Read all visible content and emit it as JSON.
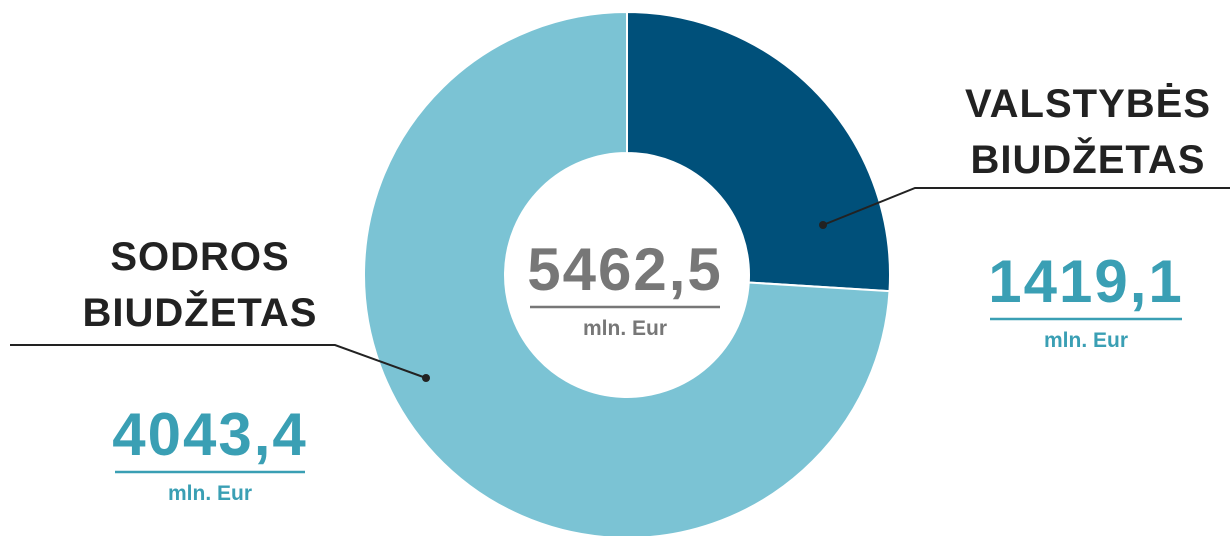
{
  "chart_data": {
    "type": "donut",
    "categories": [
      "VALSTYBĖS BIUDŽETAS",
      "SODROS BIUDŽETAS"
    ],
    "values": [
      1419.1,
      4043.4
    ],
    "value_labels": [
      "1419,1",
      "4043,4"
    ],
    "colors": [
      "#00507a",
      "#7bc3d4"
    ],
    "total": 5462.5,
    "total_label": "5462,5",
    "unit": "mln. Eur"
  }
}
